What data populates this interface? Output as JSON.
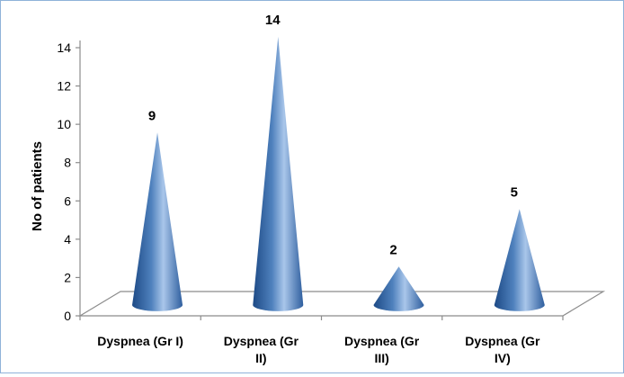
{
  "chart_data": {
    "type": "bar",
    "bar_shape": "cone",
    "style": "3d",
    "categories": [
      [
        "Dyspnea (Gr I)"
      ],
      [
        "Dyspnea (Gr",
        "II)"
      ],
      [
        "Dyspnea (Gr",
        "III)"
      ],
      [
        "Dyspnea (Gr",
        "IV)"
      ]
    ],
    "values": [
      9,
      14,
      2,
      5
    ],
    "data_labels": [
      "9",
      "14",
      "2",
      "5"
    ],
    "title": "",
    "xlabel": "",
    "ylabel": "No of patients",
    "ylim": [
      0,
      14
    ],
    "yticks": [
      0,
      2,
      4,
      6,
      8,
      10,
      12,
      14
    ],
    "grid": false,
    "legend": "none",
    "colors": {
      "cone_dark": "#1d4a86",
      "cone_mid": "#4f81bd",
      "cone_light": "#a9c6ea",
      "frame": "#8fb2d9"
    }
  }
}
